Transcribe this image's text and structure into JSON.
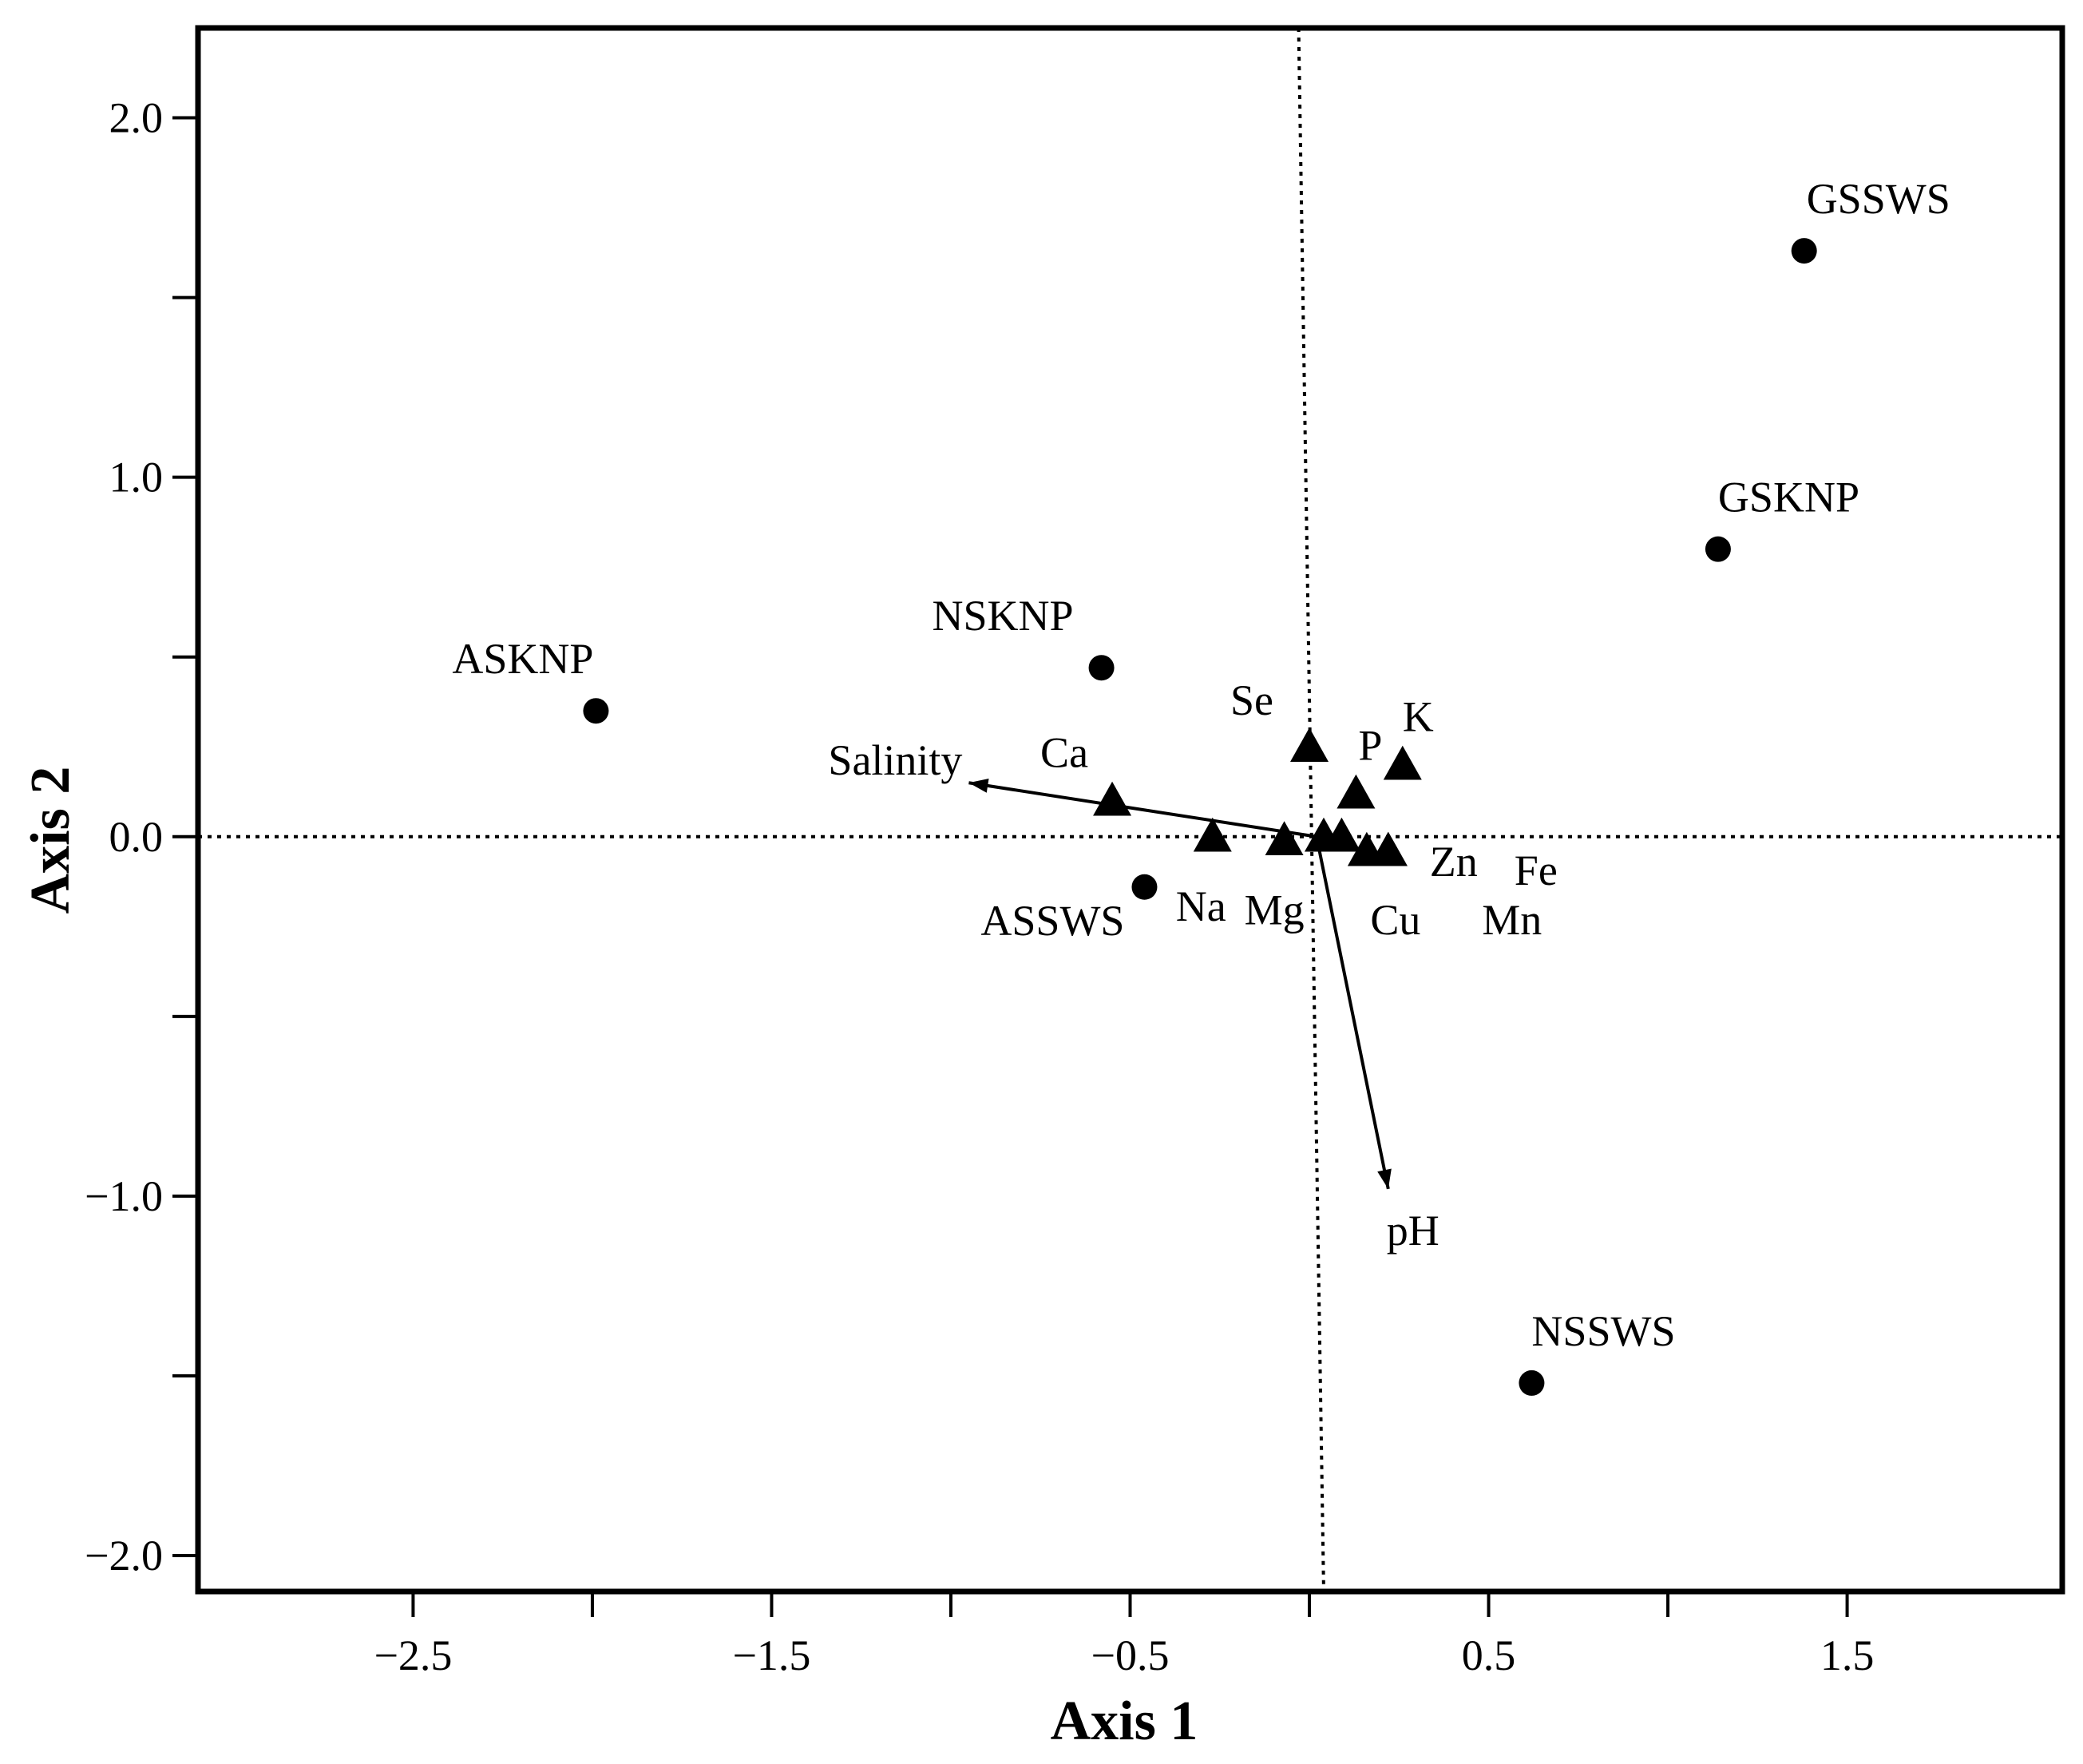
{
  "chart_data": {
    "type": "scatter",
    "title": "",
    "xlabel": "Axis 1",
    "ylabel": "Axis 2",
    "xlim": [
      -3.1,
      2.1
    ],
    "ylim": [
      -2.1,
      2.25
    ],
    "x_ticks_labeled": [
      -2.5,
      -1.5,
      -0.5,
      0.5,
      1.5
    ],
    "x_tick_labels": [
      "−2.5",
      "−1.5",
      "−0.5",
      "0.5",
      "1.5"
    ],
    "x_ticks_minor": [
      -2.0,
      -1.0,
      0.0,
      1.0
    ],
    "y_ticks_labeled": [
      2.0,
      1.0,
      0.0,
      -1.0,
      -2.0
    ],
    "y_tick_labels": [
      "2.0",
      "1.0",
      "0.0",
      "−1.0",
      "−2.0"
    ],
    "y_ticks_minor": [
      1.5,
      0.5,
      -0.5,
      -1.5
    ],
    "grid": false,
    "reference_lines": {
      "style": "dotted",
      "x_from": -0.03,
      "x_to": 0.04,
      "y": 0.0
    },
    "sites": [
      {
        "label": "GSSWS",
        "x": 1.38,
        "y": 1.63
      },
      {
        "label": "GSKNP",
        "x": 1.14,
        "y": 0.8
      },
      {
        "label": "NSKNP",
        "x": -0.58,
        "y": 0.47
      },
      {
        "label": "ASKNP",
        "x": -1.99,
        "y": 0.35
      },
      {
        "label": "ASSWS",
        "x": -0.46,
        "y": -0.14
      },
      {
        "label": "NSSWS",
        "x": 0.62,
        "y": -1.52
      }
    ],
    "elements": [
      {
        "label": "Se",
        "x": 0.0,
        "y": 0.25
      },
      {
        "label": "P",
        "x": 0.13,
        "y": 0.12
      },
      {
        "label": "K",
        "x": 0.26,
        "y": 0.2
      },
      {
        "label": "Ca",
        "x": -0.55,
        "y": 0.1
      },
      {
        "label": "Na",
        "x": -0.27,
        "y": 0.0
      },
      {
        "label": "Mg",
        "x": -0.07,
        "y": -0.01
      },
      {
        "label": "",
        "x": 0.04,
        "y": 0.0
      },
      {
        "label": "",
        "x": 0.09,
        "y": 0.0
      },
      {
        "label": "Cu",
        "x": 0.16,
        "y": -0.04
      },
      {
        "label": "Zn",
        "x": 0.22,
        "y": -0.04
      },
      {
        "label": "Fe",
        "x": 0.22,
        "y": -0.04
      },
      {
        "label": "Mn",
        "x": 0.22,
        "y": -0.04
      }
    ],
    "vectors": [
      {
        "label": "Salinity",
        "x": -0.95,
        "y": 0.15
      },
      {
        "label": "pH",
        "x": 0.22,
        "y": -0.98
      }
    ]
  }
}
